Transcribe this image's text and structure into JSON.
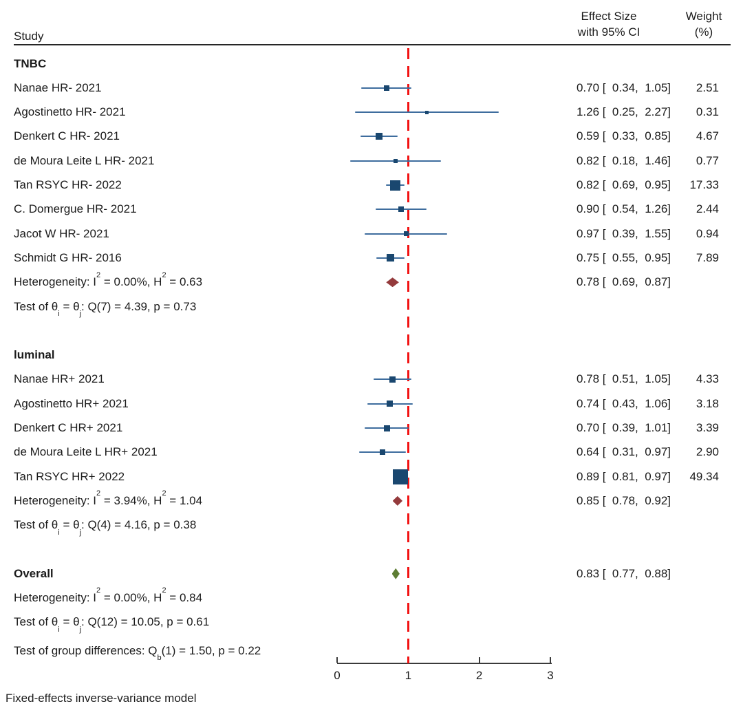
{
  "header": {
    "study": "Study",
    "effect_line1": "Effect Size",
    "effect_line2": "with 95% CI",
    "weight_line1": "Weight",
    "weight_line2": "(%)"
  },
  "footer": "Fixed-effects inverse-variance model",
  "chart_data": {
    "type": "forest",
    "axis": {
      "ticks": [
        0,
        1,
        2,
        3
      ],
      "range": [
        0,
        3
      ],
      "ref_line": 1
    },
    "colors": {
      "study_marker": "#1a476f",
      "ci_line": "#3e6d9e",
      "group_diamond": "#943a3c",
      "overall_diamond": "#5d7d33",
      "ref_line": "#f21212",
      "axis": "#3a3a3a"
    },
    "rows": [
      {
        "kind": "group",
        "label": "TNBC"
      },
      {
        "kind": "study",
        "label": "Nanae HR- 2021",
        "est": 0.7,
        "lo": 0.34,
        "hi": 1.05,
        "ci_text": "0.70 [  0.34,  1.05]",
        "weight": "2.51"
      },
      {
        "kind": "study",
        "label": "Agostinetto HR- 2021",
        "est": 1.26,
        "lo": 0.25,
        "hi": 2.27,
        "ci_text": "1.26 [  0.25,  2.27]",
        "weight": "0.31"
      },
      {
        "kind": "study",
        "label": "Denkert C HR- 2021",
        "est": 0.59,
        "lo": 0.33,
        "hi": 0.85,
        "ci_text": "0.59 [  0.33,  0.85]",
        "weight": "4.67"
      },
      {
        "kind": "study",
        "label": "de Moura Leite L HR- 2021",
        "est": 0.82,
        "lo": 0.18,
        "hi": 1.46,
        "ci_text": "0.82 [  0.18,  1.46]",
        "weight": "0.77"
      },
      {
        "kind": "study",
        "label": "Tan RSYC HR- 2022",
        "est": 0.82,
        "lo": 0.69,
        "hi": 0.95,
        "ci_text": "0.82 [  0.69,  0.95]",
        "weight": "17.33"
      },
      {
        "kind": "study",
        "label": "C. Domergue HR- 2021",
        "est": 0.9,
        "lo": 0.54,
        "hi": 1.26,
        "ci_text": "0.90 [  0.54,  1.26]",
        "weight": "2.44"
      },
      {
        "kind": "study",
        "label": "Jacot W HR- 2021",
        "est": 0.97,
        "lo": 0.39,
        "hi": 1.55,
        "ci_text": "0.97 [  0.39,  1.55]",
        "weight": "0.94"
      },
      {
        "kind": "study",
        "label": "Schmidt G HR- 2016",
        "est": 0.75,
        "lo": 0.55,
        "hi": 0.95,
        "ci_text": "0.75 [  0.55,  0.95]",
        "weight": "7.89"
      },
      {
        "kind": "summary",
        "parts": [
          {
            "t": "Heterogeneity: I"
          },
          {
            "sup": "2"
          },
          {
            "t": " = 0.00%, H"
          },
          {
            "sup": "2"
          },
          {
            "t": " = 0.63"
          }
        ],
        "diamond": "group",
        "est": 0.78,
        "lo": 0.69,
        "hi": 0.87,
        "ci_text": "0.78 [  0.69,  0.87]"
      },
      {
        "kind": "text",
        "parts": [
          {
            "t": "Test of θ"
          },
          {
            "sub": "i"
          },
          {
            "t": " = θ"
          },
          {
            "sub": "j"
          },
          {
            "t": ": Q(7) = 4.39, p = 0.73"
          }
        ]
      },
      {
        "kind": "spacer"
      },
      {
        "kind": "group",
        "label": "luminal"
      },
      {
        "kind": "study",
        "label": "Nanae HR+ 2021",
        "est": 0.78,
        "lo": 0.51,
        "hi": 1.05,
        "ci_text": "0.78 [  0.51,  1.05]",
        "weight": "4.33"
      },
      {
        "kind": "study",
        "label": "Agostinetto HR+ 2021",
        "est": 0.74,
        "lo": 0.43,
        "hi": 1.06,
        "ci_text": "0.74 [  0.43,  1.06]",
        "weight": "3.18"
      },
      {
        "kind": "study",
        "label": "Denkert C HR+ 2021",
        "est": 0.7,
        "lo": 0.39,
        "hi": 1.01,
        "ci_text": "0.70 [  0.39,  1.01]",
        "weight": "3.39"
      },
      {
        "kind": "study",
        "label": "de Moura Leite L HR+ 2021",
        "est": 0.64,
        "lo": 0.31,
        "hi": 0.97,
        "ci_text": "0.64 [  0.31,  0.97]",
        "weight": "2.90"
      },
      {
        "kind": "study",
        "label": "Tan RSYC HR+ 2022",
        "est": 0.89,
        "lo": 0.81,
        "hi": 0.97,
        "ci_text": "0.89 [  0.81,  0.97]",
        "weight": "49.34"
      },
      {
        "kind": "summary",
        "parts": [
          {
            "t": "Heterogeneity: I"
          },
          {
            "sup": "2"
          },
          {
            "t": " = 3.94%, H"
          },
          {
            "sup": "2"
          },
          {
            "t": " = 1.04"
          }
        ],
        "diamond": "group",
        "est": 0.85,
        "lo": 0.78,
        "hi": 0.92,
        "ci_text": "0.85 [  0.78,  0.92]"
      },
      {
        "kind": "text",
        "parts": [
          {
            "t": "Test of θ"
          },
          {
            "sub": "i"
          },
          {
            "t": " = θ"
          },
          {
            "sub": "j"
          },
          {
            "t": ": Q(4) = 4.16, p = 0.38"
          }
        ]
      },
      {
        "kind": "spacer"
      },
      {
        "kind": "summary",
        "label": "Overall",
        "diamond": "overall",
        "est": 0.83,
        "lo": 0.77,
        "hi": 0.88,
        "ci_text": "0.83 [  0.77,  0.88]"
      },
      {
        "kind": "text",
        "parts": [
          {
            "t": "Heterogeneity: I"
          },
          {
            "sup": "2"
          },
          {
            "t": " = 0.00%, H"
          },
          {
            "sup": "2"
          },
          {
            "t": " = 0.84"
          }
        ]
      },
      {
        "kind": "text",
        "parts": [
          {
            "t": "Test of θ"
          },
          {
            "sub": "i"
          },
          {
            "t": " = θ"
          },
          {
            "sub": "j"
          },
          {
            "t": ": Q(12) = 10.05, p = 0.61"
          }
        ]
      },
      {
        "kind": "text",
        "gap_before": 6,
        "parts": [
          {
            "t": "Test of group differences: Q"
          },
          {
            "sub": "b"
          },
          {
            "t": "(1) = 1.50, p = 0.22"
          }
        ]
      }
    ]
  }
}
